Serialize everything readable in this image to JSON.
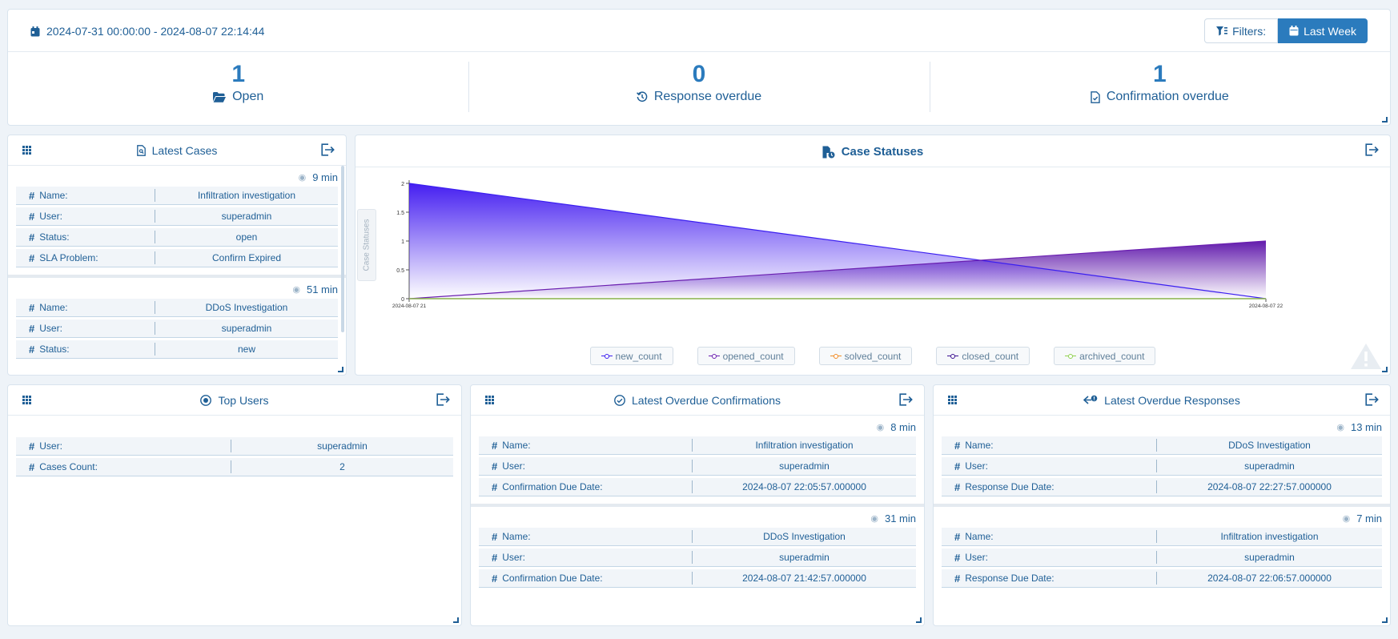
{
  "header": {
    "date_range": "2024-07-31 00:00:00 - 2024-08-07 22:14:44",
    "filters_label": "Filters:",
    "period_label": "Last Week"
  },
  "stats": [
    {
      "value": "1",
      "label": "Open",
      "icon": "folder-open-icon"
    },
    {
      "value": "0",
      "label": "Response overdue",
      "icon": "history-icon"
    },
    {
      "value": "1",
      "label": "Confirmation overdue",
      "icon": "file-check-icon"
    }
  ],
  "latest_cases": {
    "title": "Latest Cases",
    "cards": [
      {
        "age": "9 min",
        "rows": [
          {
            "key": "Name:",
            "value": "Infiltration investigation"
          },
          {
            "key": "User:",
            "value": "superadmin"
          },
          {
            "key": "Status:",
            "value": "open"
          },
          {
            "key": "SLA Problem:",
            "value": "Confirm Expired"
          }
        ]
      },
      {
        "age": "51 min",
        "rows": [
          {
            "key": "Name:",
            "value": "DDoS Investigation"
          },
          {
            "key": "User:",
            "value": "superadmin"
          },
          {
            "key": "Status:",
            "value": "new"
          }
        ]
      }
    ]
  },
  "case_statuses": {
    "title": "Case Statuses",
    "side_tab": "Case Statuses"
  },
  "chart_data": {
    "type": "area",
    "x": [
      "2024-08-07 21",
      "2024-08-07 22"
    ],
    "ylim": [
      0,
      2
    ],
    "yticks": [
      "0",
      "0.5",
      "1",
      "1.5",
      "2"
    ],
    "series": [
      {
        "name": "new_count",
        "values": [
          2,
          0
        ],
        "color": "#3b1ff0"
      },
      {
        "name": "opened_count",
        "values": [
          0,
          1
        ],
        "color": "#6a1fb0"
      },
      {
        "name": "solved_count",
        "values": [
          0,
          0
        ],
        "color": "#f08a24"
      },
      {
        "name": "closed_count",
        "values": [
          0,
          0
        ],
        "color": "#3a1090"
      },
      {
        "name": "archived_count",
        "values": [
          0,
          0
        ],
        "color": "#8fd14f"
      }
    ],
    "legend_position": "bottom"
  },
  "top_users": {
    "title": "Top Users",
    "rows": [
      {
        "key": "User:",
        "value": "superadmin"
      },
      {
        "key": "Cases Count:",
        "value": "2"
      }
    ]
  },
  "overdue_confirmations": {
    "title": "Latest Overdue Confirmations",
    "cards": [
      {
        "age": "8 min",
        "rows": [
          {
            "key": "Name:",
            "value": "Infiltration investigation"
          },
          {
            "key": "User:",
            "value": "superadmin"
          },
          {
            "key": "Confirmation Due Date:",
            "value": "2024-08-07 22:05:57.000000"
          }
        ]
      },
      {
        "age": "31 min",
        "rows": [
          {
            "key": "Name:",
            "value": "DDoS Investigation"
          },
          {
            "key": "User:",
            "value": "superadmin"
          },
          {
            "key": "Confirmation Due Date:",
            "value": "2024-08-07 21:42:57.000000"
          }
        ]
      }
    ]
  },
  "overdue_responses": {
    "title": "Latest Overdue Responses",
    "cards": [
      {
        "age": "13 min",
        "rows": [
          {
            "key": "Name:",
            "value": "DDoS Investigation"
          },
          {
            "key": "User:",
            "value": "superadmin"
          },
          {
            "key": "Response Due Date:",
            "value": "2024-08-07 22:27:57.000000"
          }
        ]
      },
      {
        "age": "7 min",
        "rows": [
          {
            "key": "Name:",
            "value": "Infiltration investigation"
          },
          {
            "key": "User:",
            "value": "superadmin"
          },
          {
            "key": "Response Due Date:",
            "value": "2024-08-07 22:06:57.000000"
          }
        ]
      }
    ]
  }
}
